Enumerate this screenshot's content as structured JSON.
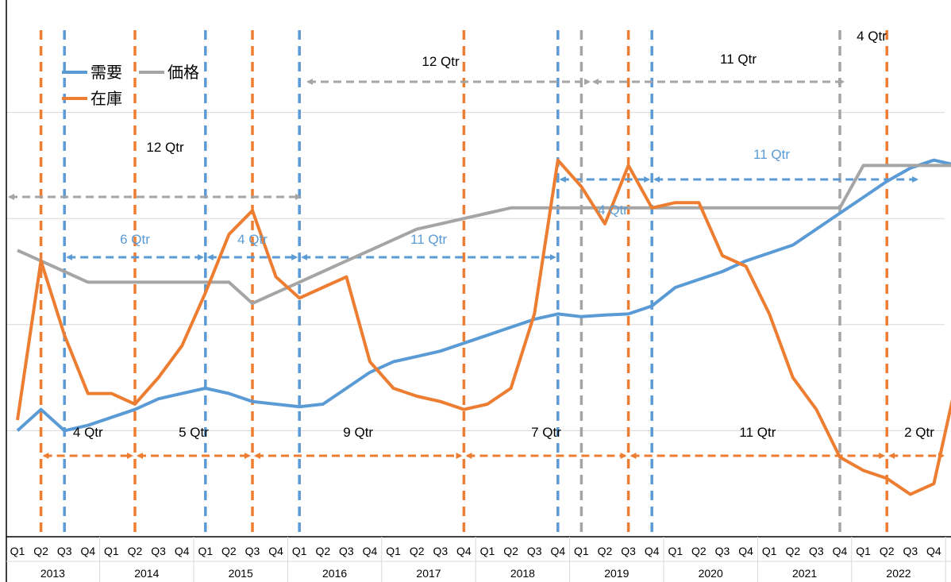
{
  "chart_data": {
    "type": "line",
    "title": "",
    "xlabel": "",
    "ylabel": "",
    "quarters": [
      "Q1",
      "Q2",
      "Q3",
      "Q4"
    ],
    "years": [
      "2013",
      "2014",
      "2015",
      "2016",
      "2017",
      "2018",
      "2019",
      "2020",
      "2021",
      "2022"
    ],
    "ylim": [
      0,
      100
    ],
    "grid": "horizontal",
    "legend_position": "top-left",
    "series": [
      {
        "name": "需要",
        "color": "#5B9BD5",
        "values": [
          20,
          24,
          20,
          21,
          22.5,
          24,
          26,
          27,
          28,
          27,
          25.5,
          25,
          24.5,
          25,
          28,
          31,
          33,
          34,
          35,
          36.5,
          38,
          39.5,
          41,
          42,
          41.5,
          41.8,
          42,
          43.5,
          47,
          48.5,
          50,
          52,
          53.5,
          55,
          58,
          61,
          64,
          67,
          69.5,
          71,
          70
        ]
      },
      {
        "name": "価格",
        "color": "#A5A5A5",
        "values": [
          54,
          52,
          50,
          48,
          48,
          48,
          48,
          48,
          48,
          48,
          44,
          46,
          48,
          50,
          52,
          54,
          56,
          58,
          59,
          60,
          61,
          62,
          62,
          62,
          62,
          62,
          62,
          62,
          62,
          62,
          62,
          62,
          62,
          62,
          62,
          62,
          70,
          70,
          70,
          70,
          70
        ]
      },
      {
        "name": "在庫",
        "color": "#ED7D31",
        "values": [
          22,
          52,
          38,
          27,
          27,
          25,
          30,
          36,
          46,
          57,
          61.5,
          49,
          45,
          47,
          49,
          33,
          28,
          26.5,
          25.5,
          24,
          25,
          28,
          42,
          71,
          66,
          59,
          70,
          62,
          63,
          63,
          53,
          51,
          42,
          30,
          24,
          15,
          12.5,
          11,
          8,
          10,
          30
        ]
      }
    ],
    "gray_markers": [
      "2016 Q1",
      "2019 Q1",
      "2021 Q4"
    ],
    "blue_markers": [
      "2013 Q3",
      "2015 Q1",
      "2016 Q1",
      "2018 Q4",
      "2019 Q4"
    ],
    "orange_markers": [
      "2013 Q2",
      "2014 Q2",
      "2015 Q3",
      "2017 Q4",
      "2019 Q3",
      "2022 Q2"
    ],
    "annotations": {
      "gray": [
        {
          "label": "12 Qtr",
          "from": "2013 Q1",
          "to": "2016 Q1"
        },
        {
          "label": "12 Qtr",
          "from": "2016 Q1",
          "to": "2019 Q1"
        },
        {
          "label": "11 Qtr",
          "from": "2019 Q1",
          "to": "2021 Q4"
        },
        {
          "label": "4 Qtr",
          "from": "2021 Q4",
          "to": "2022 Q4"
        }
      ],
      "blue": [
        {
          "label": "6 Qtr",
          "from": "2013 Q3",
          "to": "2015 Q1"
        },
        {
          "label": "4 Qtr",
          "from": "2015 Q1",
          "to": "2016 Q1"
        },
        {
          "label": "11 Qtr",
          "from": "2016 Q1",
          "to": "2018 Q4"
        },
        {
          "label": "4 Qtr",
          "from": "2018 Q4",
          "to": "2019 Q4"
        },
        {
          "label": "11 Qtr",
          "from": "2019 Q4",
          "to": "2022 Q3"
        }
      ],
      "orange": [
        {
          "label": "4 Qtr",
          "from": "2013 Q2",
          "to": "2014 Q2"
        },
        {
          "label": "5 Qtr",
          "from": "2014 Q2",
          "to": "2015 Q3"
        },
        {
          "label": "9 Qtr",
          "from": "2015 Q3",
          "to": "2017 Q4"
        },
        {
          "label": "7 Qtr",
          "from": "2017 Q4",
          "to": "2019 Q3"
        },
        {
          "label": "11 Qtr",
          "from": "2019 Q3",
          "to": "2022 Q2"
        },
        {
          "label": "2 Qtr",
          "from": "2022 Q2",
          "to": "2022 Q4"
        }
      ]
    }
  }
}
